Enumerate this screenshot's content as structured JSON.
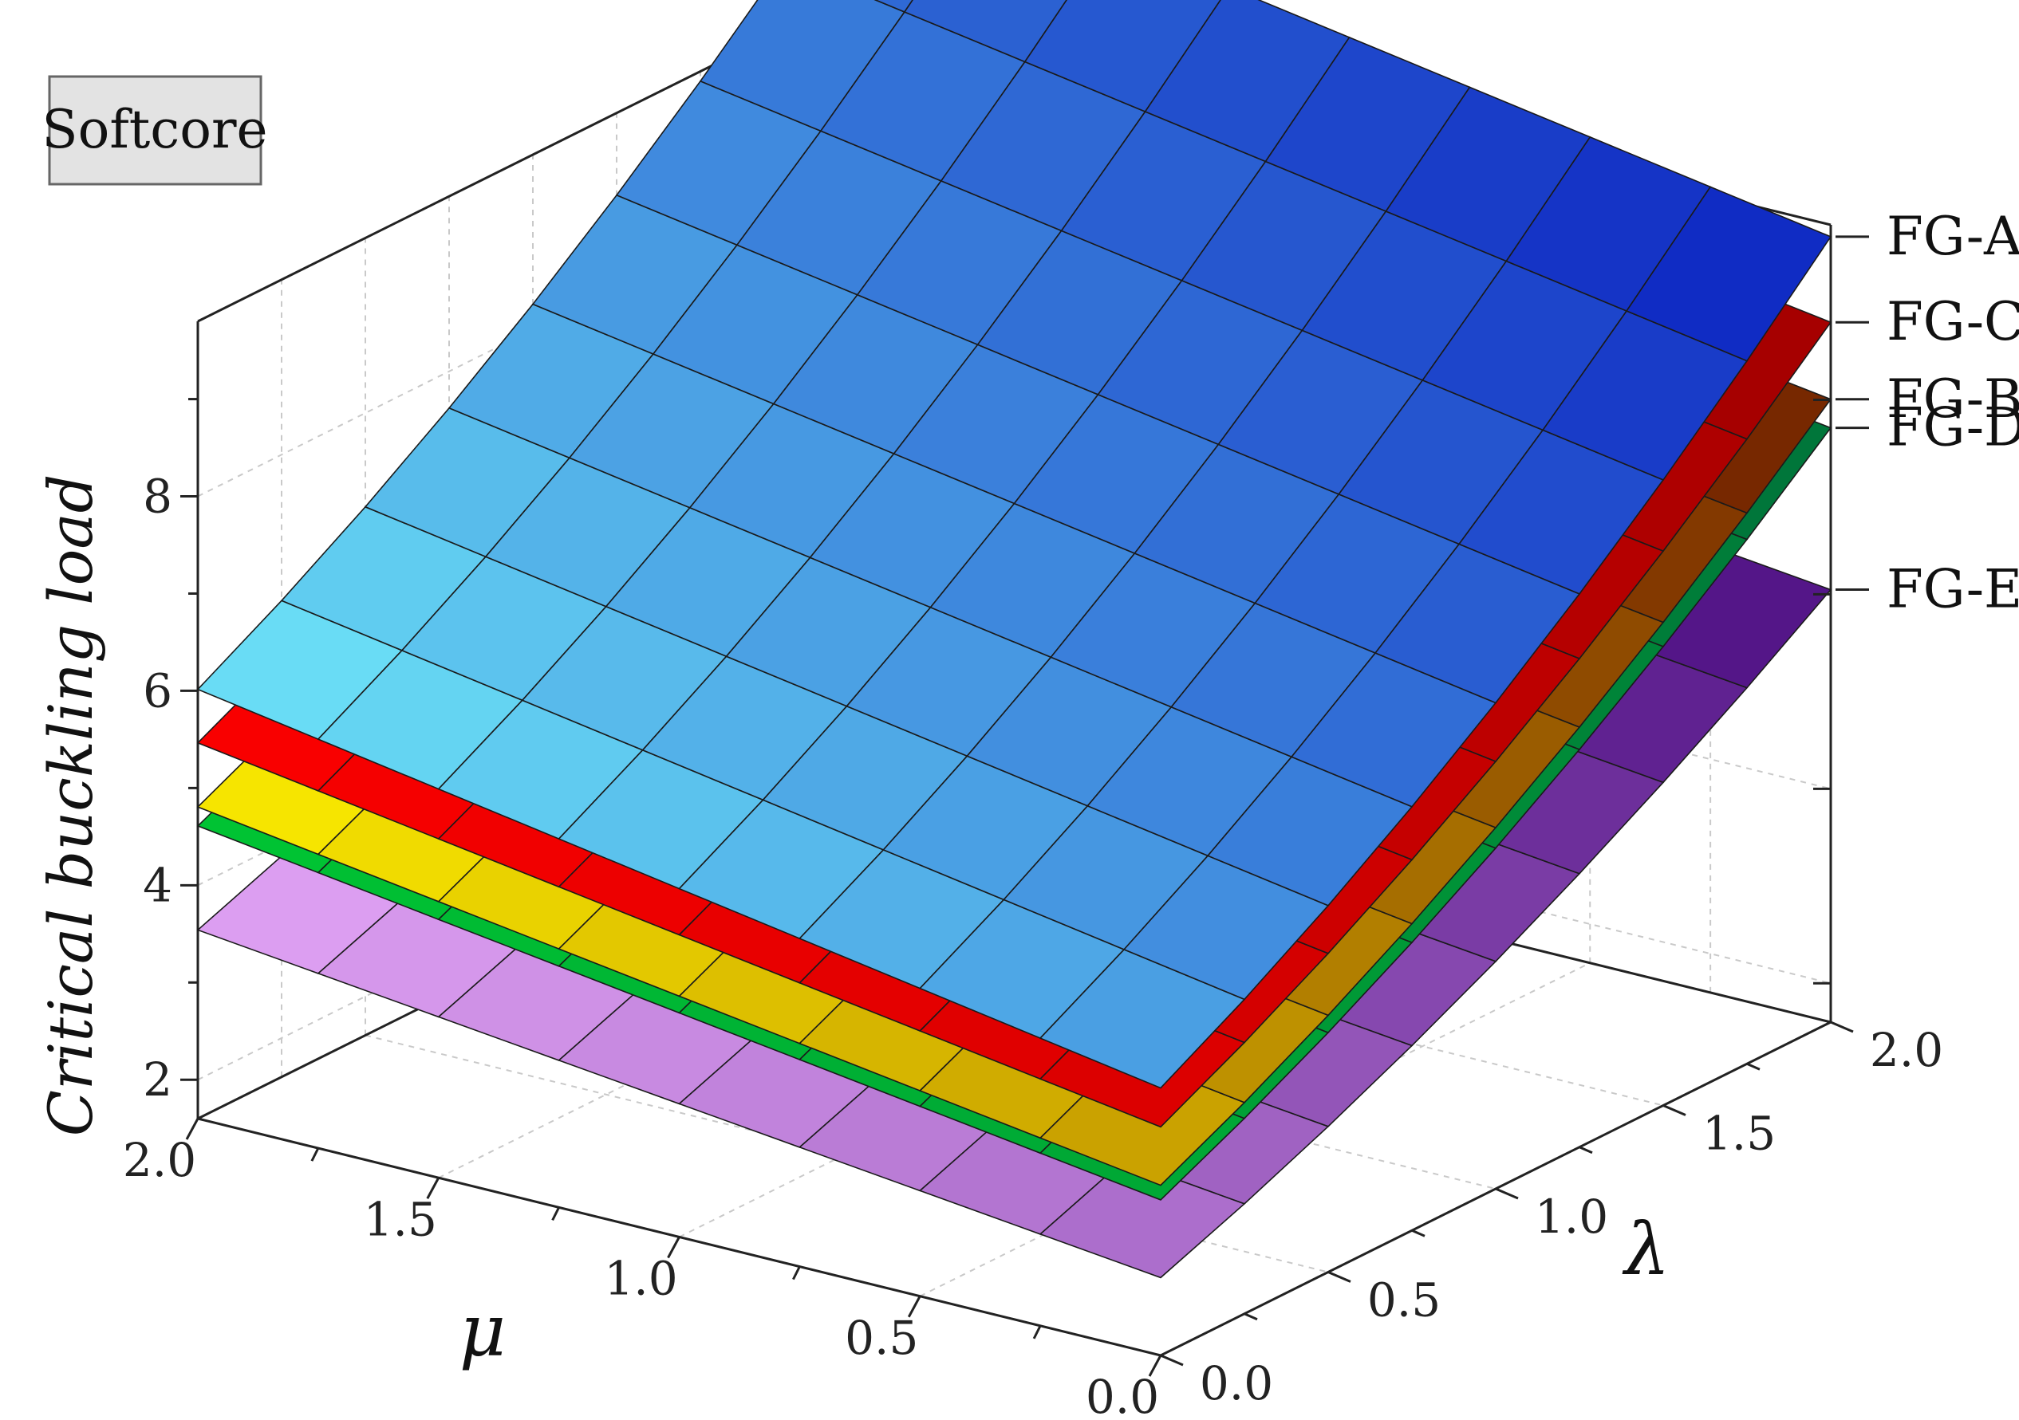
{
  "chart_data": {
    "type": "surface",
    "annotation": "Softcore",
    "zlabel": "Critical buckling load",
    "xlabel": "μ",
    "ylabel": "λ",
    "x_range": [
      0,
      2
    ],
    "y_range": [
      0,
      2
    ],
    "z_range": [
      1.6,
      9.8
    ],
    "z_ticks": [
      2,
      4,
      6,
      8
    ],
    "mu_ticks": [
      "2.0",
      "1.5",
      "1.0",
      "0.5",
      "0.0"
    ],
    "lambda_ticks": [
      "0.0",
      "0.5",
      "1.0",
      "1.5",
      "2.0"
    ],
    "grid": "on",
    "surfaces": [
      {
        "name": "FG-E",
        "z_min": 2.4,
        "z_max": 6.2
      },
      {
        "name": "FG-D",
        "z_min": 3.2,
        "z_max": 7.9
      },
      {
        "name": "FG-B",
        "z_min": 3.35,
        "z_max": 8.2
      },
      {
        "name": "FG-C",
        "z_min": 3.95,
        "z_max": 9.0
      },
      {
        "name": "FG-A",
        "z_min": 4.35,
        "z_max": 9.9
      }
    ],
    "surface_model": "z = z_min + (z_max - z_min) * (0.15*mu + 0.33*lambda + 0.075*lambda^2)"
  },
  "colors": {
    "FG-A": [
      "#6FE9F8",
      "#0A1FC0"
    ],
    "FG-C": [
      "#FF0000",
      "#A00000"
    ],
    "FG-B": [
      "#FFF200",
      "#6E1A00"
    ],
    "FG-D": [
      "#00C832",
      "#00703A"
    ],
    "FG-E": [
      "#E6A8F8",
      "#4A0C80"
    ]
  }
}
